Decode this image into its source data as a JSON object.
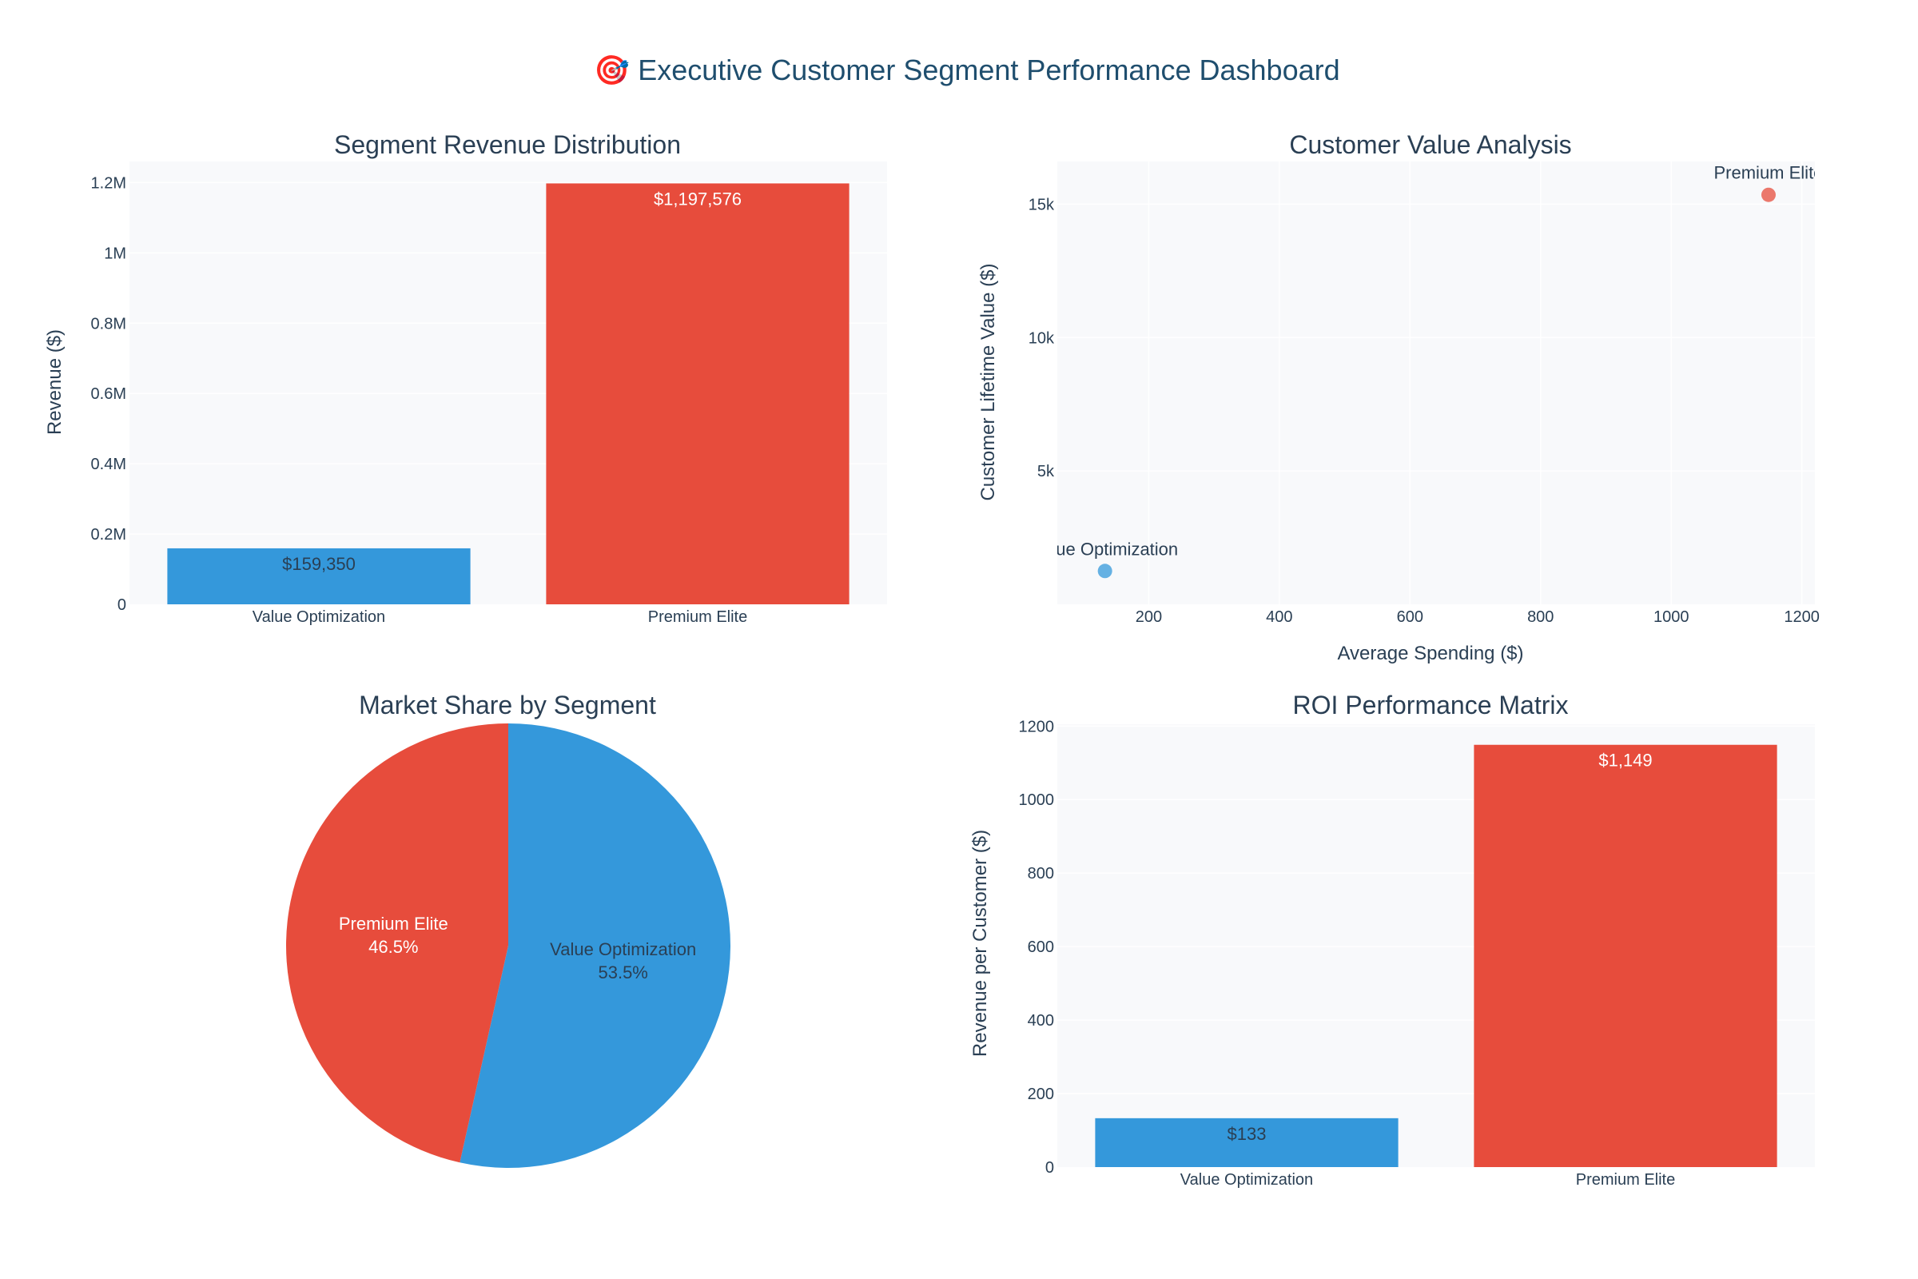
{
  "dashboard": {
    "title": "🎯 Executive Customer Segment Performance Dashboard"
  },
  "colors": {
    "value_optimization": "#3498db",
    "premium_elite": "#e74c3c",
    "title": "#1f4e6e",
    "text": "#2a3f54"
  },
  "chart_data": [
    {
      "id": "revenue",
      "type": "bar",
      "title": "Segment Revenue Distribution",
      "xlabel": "",
      "ylabel": "Revenue ($)",
      "categories": [
        "Value Optimization",
        "Premium Elite"
      ],
      "values": [
        159350,
        1197576
      ],
      "data_labels": [
        "$159,350",
        "$1,197,576"
      ],
      "ylim": [
        0,
        1260000
      ],
      "yticks": [
        0,
        200000,
        400000,
        600000,
        800000,
        1000000,
        1200000
      ],
      "ytick_labels": [
        "0",
        "0.2M",
        "0.4M",
        "0.6M",
        "0.8M",
        "1M",
        "1.2M"
      ],
      "grid": true
    },
    {
      "id": "value",
      "type": "scatter",
      "title": "Customer Value Analysis",
      "xlabel": "Average Spending ($)",
      "ylabel": "Customer Lifetime Value ($)",
      "points": [
        {
          "label": "Value Optimization",
          "x": 133,
          "y": 1250
        },
        {
          "label": "Premium Elite",
          "x": 1149,
          "y": 15350
        }
      ],
      "xlim": [
        60,
        1220
      ],
      "ylim": [
        0,
        16600
      ],
      "xticks": [
        200,
        400,
        600,
        800,
        1000,
        1200
      ],
      "xtick_labels": [
        "200",
        "400",
        "600",
        "800",
        "1000",
        "1200"
      ],
      "yticks": [
        5000,
        10000,
        15000
      ],
      "ytick_labels": [
        "5k",
        "10k",
        "15k"
      ],
      "grid": true
    },
    {
      "id": "share",
      "type": "pie",
      "title": "Market Share by Segment",
      "slices": [
        {
          "label": "Value Optimization",
          "value": 53.5,
          "pct_label": "53.5%"
        },
        {
          "label": "Premium Elite",
          "value": 46.5,
          "pct_label": "46.5%"
        }
      ]
    },
    {
      "id": "roi",
      "type": "bar",
      "title": "ROI Performance Matrix",
      "xlabel": "",
      "ylabel": "Revenue per Customer ($)",
      "categories": [
        "Value Optimization",
        "Premium Elite"
      ],
      "values": [
        133,
        1149
      ],
      "data_labels": [
        "$133",
        "$1,149"
      ],
      "ylim": [
        0,
        1205
      ],
      "yticks": [
        0,
        200,
        400,
        600,
        800,
        1000,
        1200
      ],
      "ytick_labels": [
        "0",
        "200",
        "400",
        "600",
        "800",
        "1000",
        "1200"
      ],
      "grid": true
    }
  ]
}
